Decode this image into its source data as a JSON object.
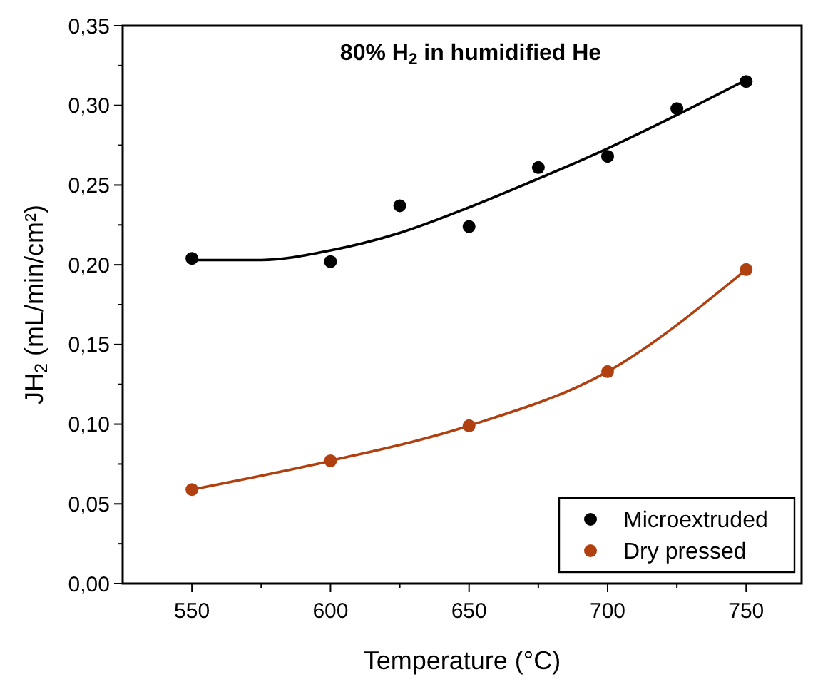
{
  "chart_data": {
    "type": "scatter",
    "title": "80% H$_{2}$ in humidified He",
    "xlabel": "Temperature (°C)",
    "ylabel": "JH$_{2}$ (mL/min/cm²)",
    "xlim": [
      525,
      770
    ],
    "xticks": [
      {
        "value": 550,
        "label": "550"
      },
      {
        "value": 575,
        "label": null
      },
      {
        "value": 600,
        "label": "600"
      },
      {
        "value": 625,
        "label": null
      },
      {
        "value": 650,
        "label": "650"
      },
      {
        "value": 675,
        "label": null
      },
      {
        "value": 700,
        "label": "700"
      },
      {
        "value": 725,
        "label": null
      },
      {
        "value": 750,
        "label": "750"
      }
    ],
    "ylim": [
      0,
      0.35
    ],
    "yticks": [
      {
        "value": 0,
        "label": "0,00"
      },
      {
        "value": 0.025,
        "label": null
      },
      {
        "value": 0.05,
        "label": "0,05"
      },
      {
        "value": 0.075,
        "label": null
      },
      {
        "value": 0.1,
        "label": "0,10"
      },
      {
        "value": 0.125,
        "label": null
      },
      {
        "value": 0.15,
        "label": "0,15"
      },
      {
        "value": 0.175,
        "label": null
      },
      {
        "value": 0.2,
        "label": "0,20"
      },
      {
        "value": 0.225,
        "label": null
      },
      {
        "value": 0.25,
        "label": "0,25"
      },
      {
        "value": 0.275,
        "label": null
      },
      {
        "value": 0.3,
        "label": "0,30"
      },
      {
        "value": 0.325,
        "label": null
      },
      {
        "value": 0.35,
        "label": "0,35"
      }
    ],
    "legend": "bottom right",
    "marker": "circle",
    "grid": false,
    "series": [
      {
        "name": "Microextruded",
        "color": "#000000",
        "x": [
          550,
          600,
          625,
          650,
          675,
          700,
          725,
          750
        ],
        "values": [
          0.204,
          0.202,
          0.237,
          0.224,
          0.261,
          0.268,
          0.298,
          0.315
        ]
      },
      {
        "type": "line",
        "marker": "none",
        "color": "#000000",
        "x": [
          550,
          575,
          600,
          625,
          650,
          675,
          700,
          725,
          750
        ],
        "values": [
          0.203,
          0.203,
          0.209,
          0.22,
          0.236,
          0.254,
          0.273,
          0.294,
          0.316
        ]
      },
      {
        "name": "Dry pressed",
        "type": "line",
        "marker": "circle",
        "color": "#b0400f",
        "x": [
          550,
          600,
          650,
          700,
          750
        ],
        "values": [
          0.059,
          0.077,
          0.099,
          0.133,
          0.197
        ]
      }
    ]
  }
}
